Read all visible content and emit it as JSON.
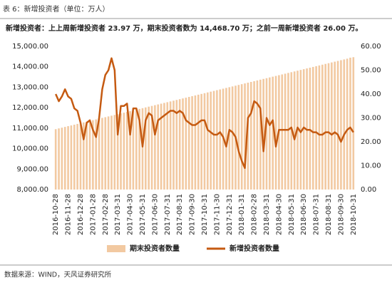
{
  "caption": "表 6：新增投资者（单位：万人）",
  "chart_data": {
    "type": "bar-line",
    "title": "新增投资者：上上周新增投资者 23.97 万，期末投资者数为 14,468.70 万；之前一周新增投资者 26.00 万。",
    "categories": [
      "2016-10-28",
      null,
      null,
      null,
      "2016-11-28",
      null,
      null,
      null,
      "2016-12-28",
      null,
      null,
      null,
      "2017-01-28",
      null,
      null,
      null,
      "2017-02-28",
      null,
      null,
      null,
      "2017-03-31",
      null,
      null,
      null,
      "2017-04-30",
      null,
      null,
      null,
      "2017-05-31",
      null,
      null,
      null,
      "2017-06-30",
      null,
      null,
      null,
      "2017-07-31",
      null,
      null,
      null,
      "2017-08-31",
      null,
      null,
      null,
      "2017-09-30",
      null,
      null,
      null,
      "2017-10-31",
      null,
      null,
      null,
      "2017-11-30",
      null,
      null,
      null,
      "2017-12-31",
      null,
      null,
      null,
      "2018-01-31",
      null,
      null,
      null,
      "2018-02-28",
      null,
      null,
      null,
      "2018-03-31",
      null,
      null,
      null,
      "2018-04-30",
      null,
      null,
      null,
      "2018-05-31",
      null,
      null,
      null,
      "2018-06-30",
      null,
      null,
      null,
      "2018-07-31",
      null,
      null,
      null,
      "2018-08-31",
      null,
      null,
      null,
      "2018-09-30",
      null,
      null,
      null,
      "2018-10-31"
    ],
    "series": [
      {
        "name": "期末投资者数量",
        "color": "#f2c9a1",
        "kind": "bar",
        "values": [
          10950,
          10987,
          11023,
          11060,
          11097,
          11133,
          11170,
          11207,
          11243,
          11280,
          11317,
          11353,
          11390,
          11426,
          11463,
          11500,
          11536,
          11573,
          11610,
          11646,
          11683,
          11720,
          11756,
          11793,
          11830,
          11866,
          11903,
          11940,
          11976,
          12013,
          12050,
          12086,
          12123,
          12159,
          12196,
          12233,
          12269,
          12306,
          12343,
          12379,
          12416,
          12453,
          12489,
          12526,
          12563,
          12599,
          12636,
          12673,
          12709,
          12746,
          12783,
          12819,
          12856,
          12892,
          12929,
          12966,
          13002,
          13039,
          13076,
          13112,
          13149,
          13186,
          13222,
          13259,
          13296,
          13332,
          13369,
          13406,
          13442,
          13479,
          13516,
          13552,
          13589,
          13625,
          13662,
          13699,
          13735,
          13772,
          13809,
          13845,
          13882,
          13919,
          13955,
          13992,
          14029,
          14065,
          14102,
          14139,
          14175,
          14212,
          14249,
          14285,
          14322,
          14358,
          14395,
          14444.73,
          14468.7
        ]
      },
      {
        "name": "新增投资者数量",
        "color": "#c55a11",
        "kind": "line",
        "axis": "y2",
        "values": [
          40,
          37,
          39,
          42,
          39,
          38,
          34,
          33,
          28,
          21,
          28,
          29,
          25,
          22,
          30,
          42,
          48,
          50,
          55,
          50,
          23,
          35,
          35,
          36,
          23,
          34,
          34,
          29,
          18,
          29,
          32,
          31,
          23,
          29,
          30,
          31,
          32,
          33,
          33,
          32,
          33,
          32,
          29,
          28,
          27,
          27,
          28,
          29,
          29,
          25,
          24,
          23,
          23,
          24,
          22,
          18,
          25,
          24,
          22,
          16,
          12,
          9,
          30,
          32,
          37,
          36,
          34,
          16,
          30,
          27,
          29,
          18,
          25,
          25,
          25,
          25,
          26,
          21,
          26,
          24,
          26,
          25,
          25,
          24,
          24,
          23,
          23,
          24,
          24,
          23,
          24,
          23,
          20,
          23,
          25,
          26,
          23.97
        ]
      }
    ],
    "ylim": [
      8000,
      15000
    ],
    "yticks": [
      {
        "value": 8000,
        "label": "8,000.00"
      },
      {
        "value": 9000,
        "label": "9,000.00"
      },
      {
        "value": 10000,
        "label": "10,000.00"
      },
      {
        "value": 11000,
        "label": "11,000.00"
      },
      {
        "value": 12000,
        "label": "12,000.00"
      },
      {
        "value": 13000,
        "label": "13,000.00"
      },
      {
        "value": 14000,
        "label": "14,000.00"
      },
      {
        "value": 15000,
        "label": "15,000.00"
      }
    ],
    "y2lim": [
      0,
      60
    ],
    "y2ticks": [
      {
        "value": 0,
        "label": "0.00"
      },
      {
        "value": 10,
        "label": "10.00"
      },
      {
        "value": 20,
        "label": "20.00"
      },
      {
        "value": 30,
        "label": "30.00"
      },
      {
        "value": 40,
        "label": "40.00"
      },
      {
        "value": 50,
        "label": "50.00"
      },
      {
        "value": 60,
        "label": "60.00"
      }
    ]
  },
  "source": "数据来源：WIND，天风证券研究所"
}
